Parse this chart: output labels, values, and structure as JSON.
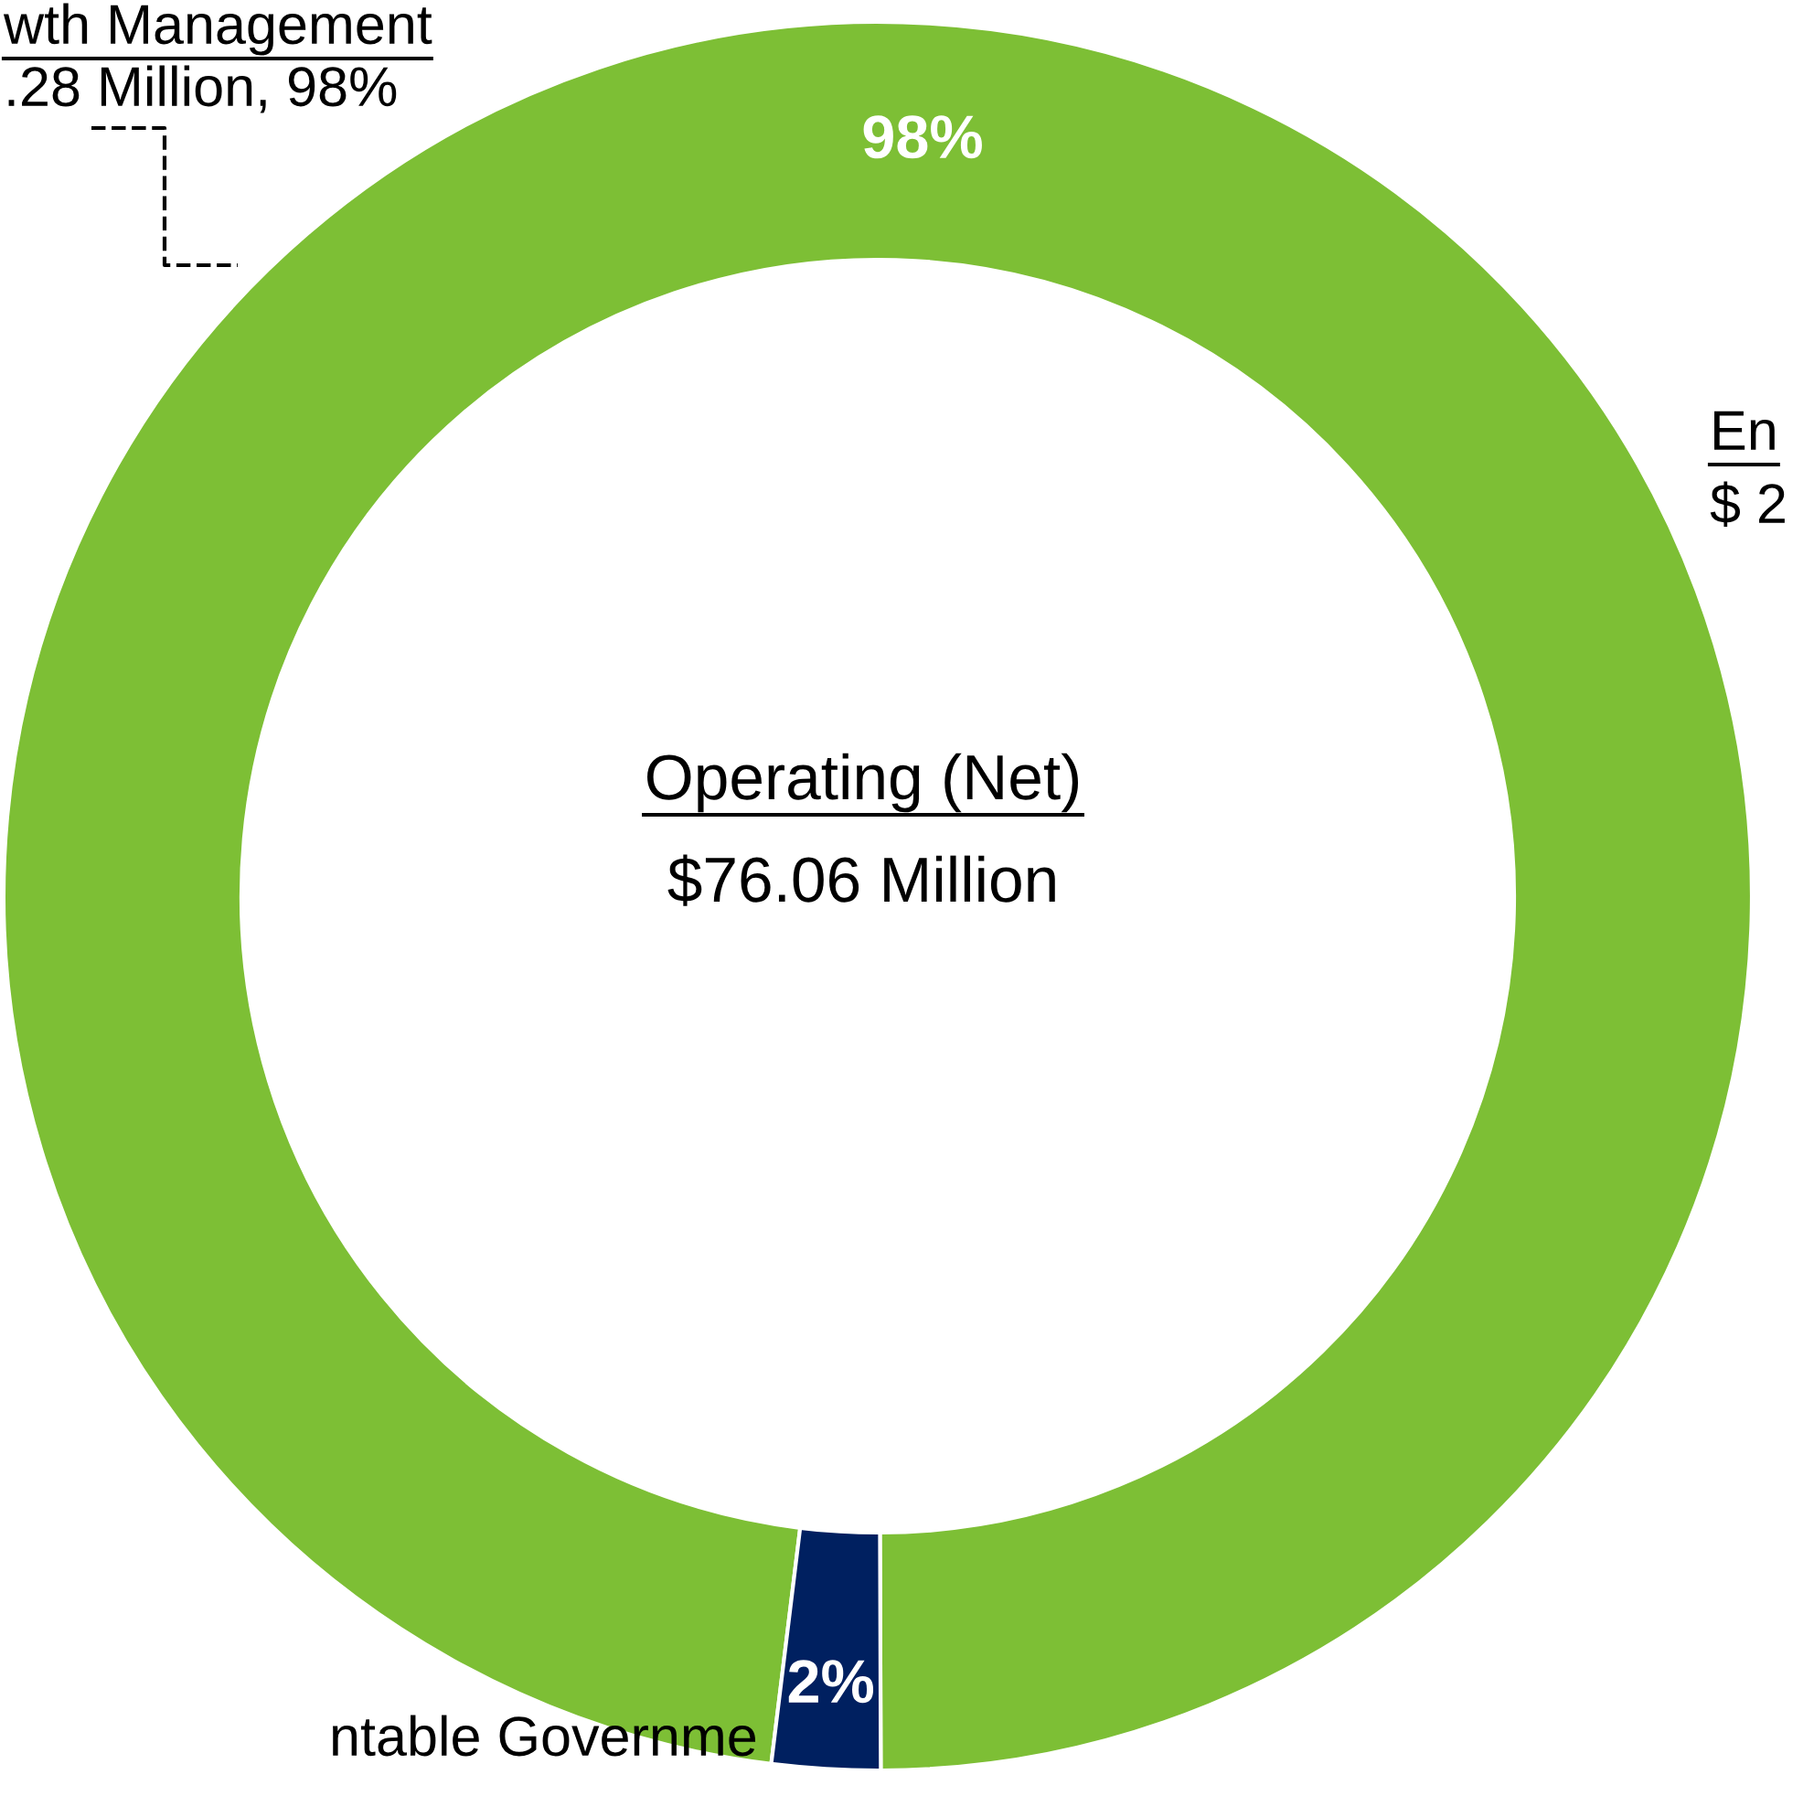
{
  "chart_data": {
    "type": "donut",
    "categories": [
      null,
      null
    ],
    "values": [
      98,
      2
    ],
    "colors": [
      "#7dbf35",
      "#002060"
    ],
    "value_labels": [
      "98%",
      "2%"
    ],
    "annotations": [
      "wth Management",
      ".28 Million, 98%",
      "En",
      "$ 2",
      "Operating (Net)",
      "$76.06 Million",
      "ntable Governme"
    ]
  }
}
